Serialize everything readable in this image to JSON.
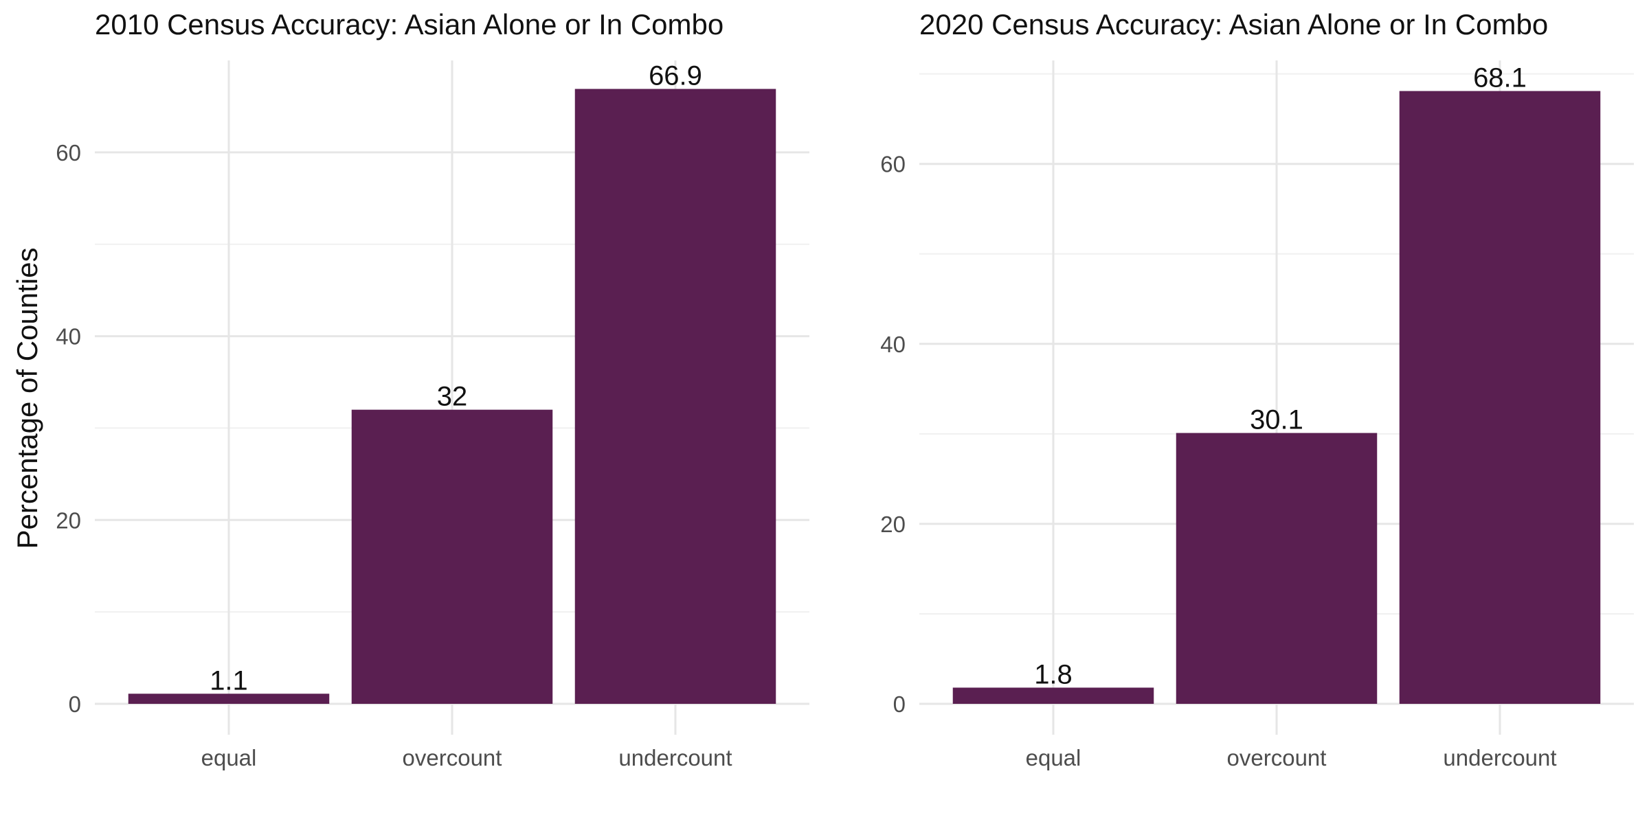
{
  "colors": {
    "bar": "#5a1f51",
    "grid_major": "#e6e6e6",
    "grid_minor": "#f0f0f0",
    "tick_text": "#4d4d4d"
  },
  "ylabel": "Percentage of Counties",
  "chart_data": [
    {
      "type": "bar",
      "title": "2010 Census Accuracy: Asian Alone or In Combo",
      "categories": [
        "equal",
        "overcount",
        "undercount"
      ],
      "values": [
        1.1,
        32,
        66.9
      ],
      "data_labels": [
        "1.1",
        "32",
        "66.9"
      ],
      "ylabel": "Percentage of Counties",
      "xlabel": "",
      "ylim": [
        0,
        70
      ],
      "yticks": [
        0,
        20,
        40,
        60
      ],
      "ytick_labels": [
        "0",
        "20",
        "40",
        "60"
      ],
      "grid": true,
      "legend": "none"
    },
    {
      "type": "bar",
      "title": "2020 Census Accuracy: Asian Alone or In Combo",
      "categories": [
        "equal",
        "overcount",
        "undercount"
      ],
      "values": [
        1.8,
        30.1,
        68.1
      ],
      "data_labels": [
        "1.8",
        "30.1",
        "68.1"
      ],
      "ylabel": "",
      "xlabel": "",
      "ylim": [
        0,
        71.5
      ],
      "yticks": [
        0,
        20,
        40,
        60
      ],
      "ytick_labels": [
        "0",
        "20",
        "40",
        "60"
      ],
      "grid": true,
      "legend": "none"
    }
  ]
}
